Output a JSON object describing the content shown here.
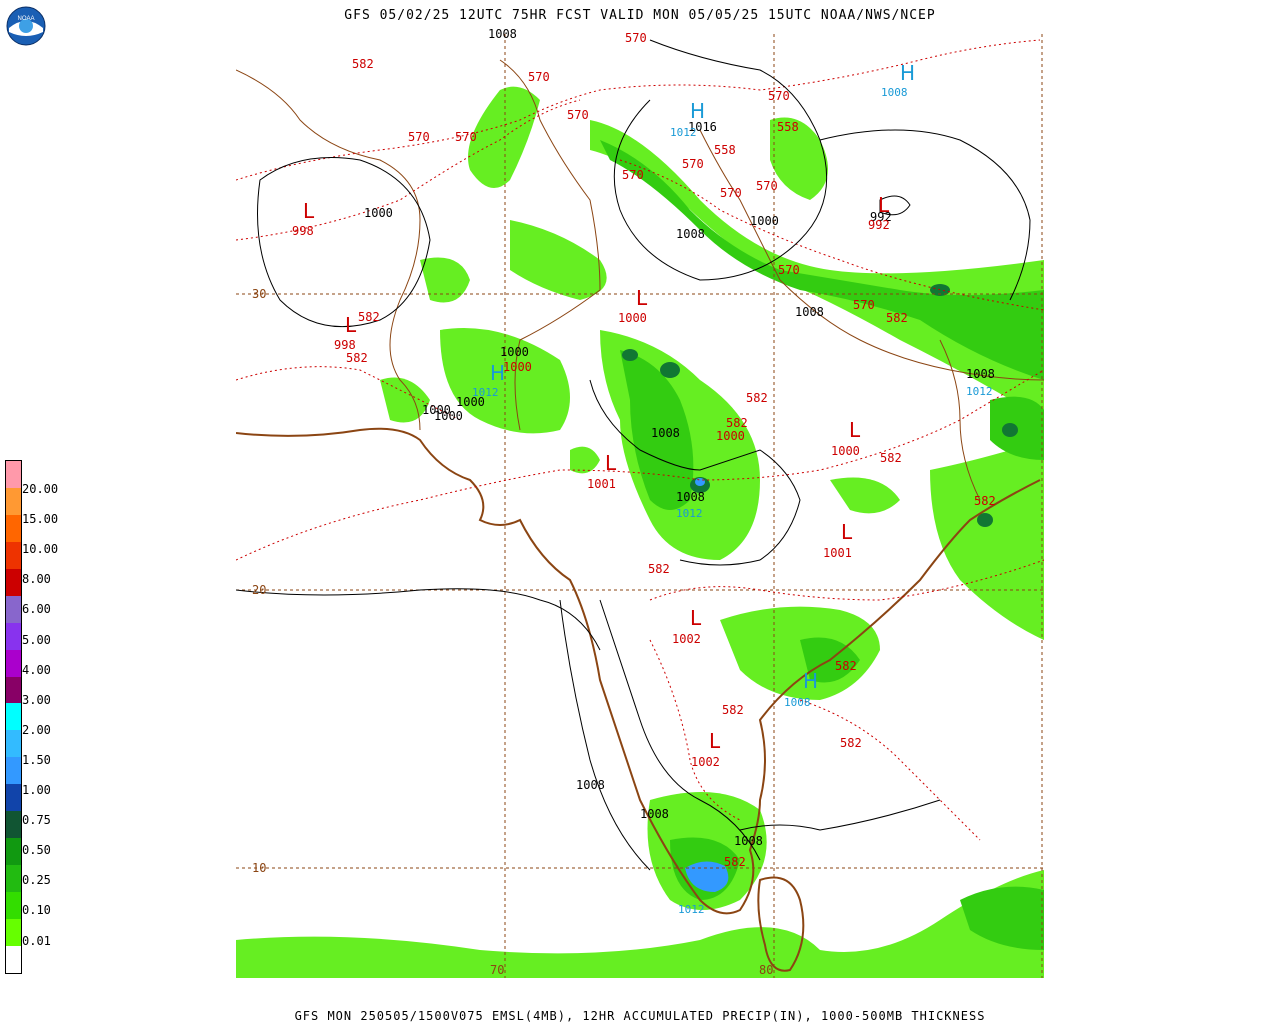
{
  "title": "GFS 05/02/25 12UTC 75HR FCST VALID MON 05/05/25 15UTC NOAA/NWS/NCEP",
  "footer": "GFS MON 250505/1500V075 EMSL(4MB), 12HR ACCUMULATED PRECIP(IN), 1000-500MB THICKNESS",
  "logo": {
    "text": "NOAA"
  },
  "legend": {
    "labels": [
      "20.00",
      "15.00",
      "10.00",
      "8.00",
      "6.00",
      "5.00",
      "4.00",
      "3.00",
      "2.00",
      "1.50",
      "1.00",
      "0.75",
      "0.50",
      "0.25",
      "0.10",
      "0.01"
    ],
    "colors": [
      "#ffffff",
      "#66ff00",
      "#33dd00",
      "#22bb11",
      "#119911",
      "#115533",
      "#1144aa",
      "#3399ff",
      "#33bbff",
      "#00ffff",
      "#880066",
      "#aa00cc",
      "#8833ee",
      "#8866cc",
      "#cc0000",
      "#ee3300",
      "#ff6600",
      "#ff9933",
      "#ff99aa"
    ]
  },
  "grid_labels": {
    "lat30": "30",
    "lat20": "20",
    "lat10": "10",
    "lon70": "70",
    "lon80": "80"
  },
  "thickness_labels": [
    "582",
    "570",
    "570",
    "570",
    "570",
    "570",
    "558",
    "570",
    "558",
    "570",
    "570",
    "570",
    "570",
    "570",
    "570",
    "582",
    "582",
    "582",
    "582",
    "582",
    "582",
    "582",
    "582",
    "582",
    "582",
    "582",
    "582"
  ],
  "pressure_labels": [
    "1008",
    "1016",
    "1000",
    "1008",
    "1000",
    "1008",
    "1000",
    "1000",
    "1000",
    "1008",
    "1008",
    "1008",
    "1008",
    "1008",
    "1008",
    "1008",
    "992"
  ],
  "low_values": [
    "998",
    "998",
    "1000",
    "1000",
    "1000",
    "1000",
    "1001",
    "1001",
    "1002",
    "1002",
    "992"
  ],
  "high_values": [
    "1008",
    "1012",
    "1012",
    "1012",
    "1012",
    "1008",
    "1012"
  ],
  "symbols": {
    "low": "L",
    "high": "H"
  }
}
